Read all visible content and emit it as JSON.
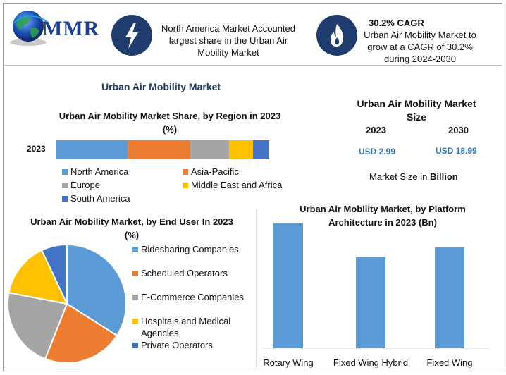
{
  "brand": {
    "logo_text": "MMR"
  },
  "header": {
    "info1": "North America Market Accounted largest share in the Urban Air Mobility Market",
    "info2_title": "30.2% CAGR",
    "info2_text": "Urban Air Mobility Market to grow at a CAGR of 30.2% during 2024-2030",
    "icon1": "lightning-icon",
    "icon2": "flame-icon"
  },
  "main_title": "Urban Air Mobility Market",
  "market_size": {
    "title": "Urban Air Mobility Market Size",
    "year1": "2023",
    "year2": "2030",
    "value1": "USD 2.99",
    "value2": "USD 18.99",
    "note_prefix": "Market Size in ",
    "note_unit": "Billion"
  },
  "chart_data": [
    {
      "type": "bar",
      "orientation": "horizontal-stacked",
      "title": "Urban Air Mobility Market Share, by Region in 2023 (%)",
      "categories": [
        "2023"
      ],
      "series": [
        {
          "name": "North America",
          "values": [
            33
          ],
          "color": "#5b9bd5"
        },
        {
          "name": "Asia-Pacific",
          "values": [
            29
          ],
          "color": "#ed7d31"
        },
        {
          "name": "Europe",
          "values": [
            18
          ],
          "color": "#a5a5a5"
        },
        {
          "name": "Middle East and Africa",
          "values": [
            11
          ],
          "color": "#ffc000"
        },
        {
          "name": "South America",
          "values": [
            7.5
          ],
          "color": "#4472c4"
        }
      ],
      "legend": "bottom"
    },
    {
      "type": "pie",
      "title": "Urban Air Mobility Market, by End User In 2023 (%)",
      "labels": [
        "Ridesharing Companies",
        "Scheduled Operators",
        "E-Commerce Companies",
        "Hospitals and Medical Agencies",
        "Private Operators"
      ],
      "values": [
        34,
        22,
        22,
        15,
        7
      ],
      "colors": [
        "#5b9bd5",
        "#ed7d31",
        "#a5a5a5",
        "#ffc000",
        "#4472c4"
      ],
      "legend": "right"
    },
    {
      "type": "bar",
      "title": "Urban Air Mobility Market, by Platform Architecture in 2023 (Bn)",
      "categories": [
        "Rotary Wing",
        "Fixed Wing Hybrid",
        "Fixed Wing"
      ],
      "values": [
        1.15,
        0.84,
        0.93
      ],
      "color": "#5b9bd5",
      "ylim": [
        0,
        1.2
      ],
      "grid": false
    }
  ]
}
